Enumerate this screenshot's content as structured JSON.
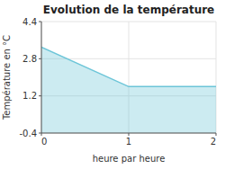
{
  "chart_data": {
    "type": "area",
    "title": "Evolution de la température",
    "xlabel": "heure par heure",
    "ylabel": "Température en °C",
    "x": [
      0,
      1,
      2
    ],
    "values": [
      3.3,
      1.6,
      1.6
    ],
    "color": "#6cc5d8",
    "xlim": [
      0,
      2
    ],
    "ylim": [
      -0.4,
      4.4
    ],
    "xticks": [
      0,
      1,
      2
    ],
    "yticks": [
      -0.4,
      1.2,
      2.8,
      4.4
    ],
    "grid": true
  }
}
